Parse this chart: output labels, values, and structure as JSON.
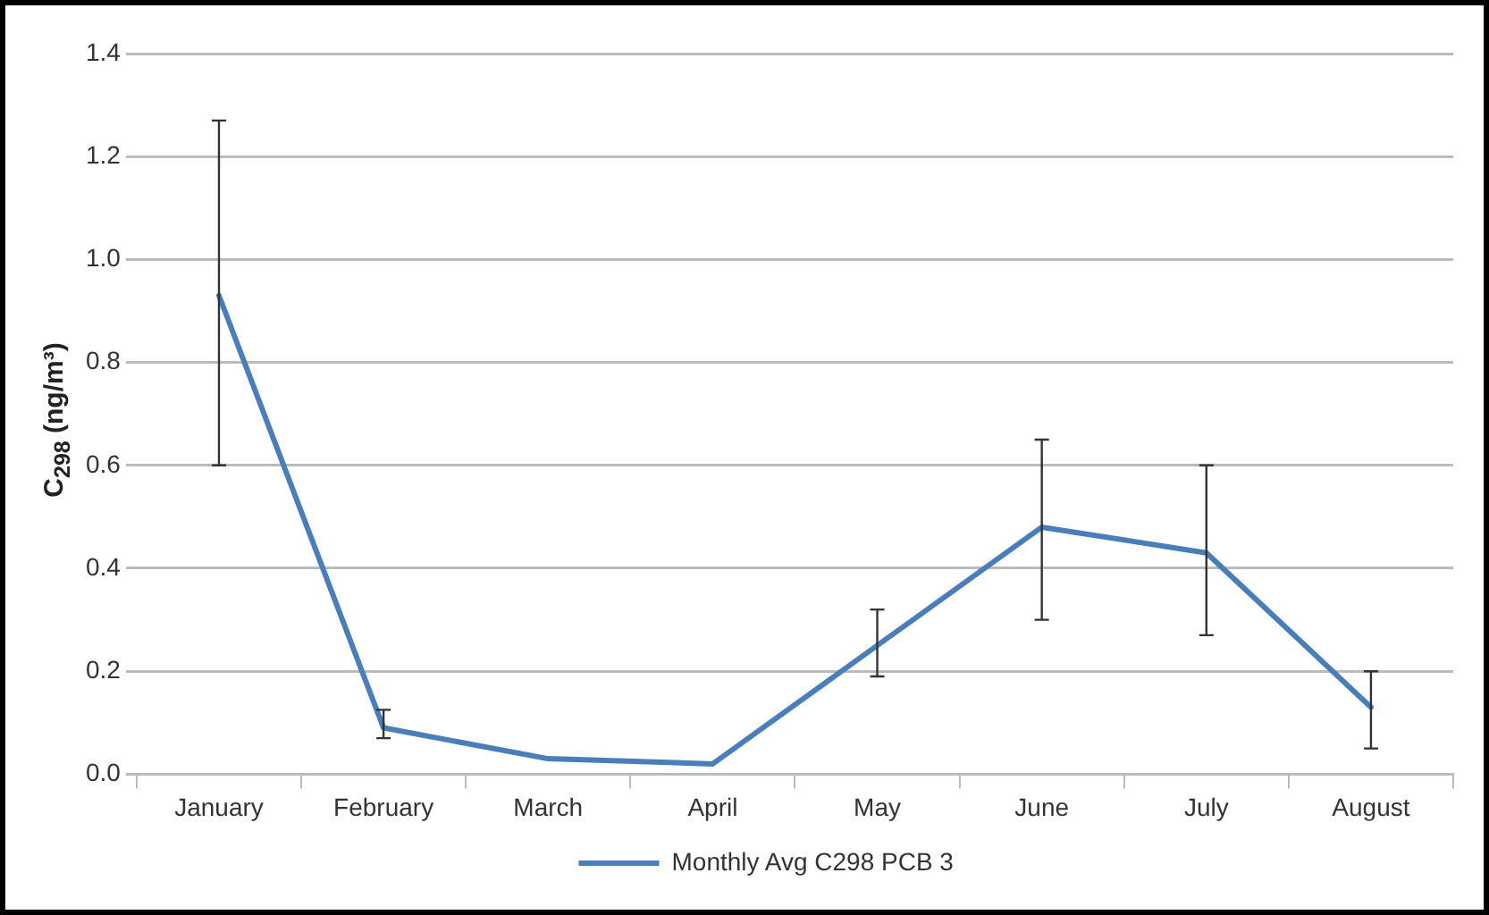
{
  "chart_data": {
    "type": "line",
    "ylabel": "C$_{298}$ (ng/m³)",
    "categories": [
      "January",
      "February",
      "March",
      "April",
      "May",
      "June",
      "July",
      "August"
    ],
    "series": [
      {
        "name": "Monthly Avg C298 PCB 3",
        "color": "#4a7ebb",
        "values": [
          0.93,
          0.09,
          0.03,
          0.02,
          0.25,
          0.48,
          0.43,
          0.13
        ],
        "errors": [
          [
            0.6,
            1.27
          ],
          [
            0.07,
            0.125
          ],
          null,
          null,
          [
            0.19,
            0.32
          ],
          [
            0.3,
            0.65
          ],
          [
            0.27,
            0.6
          ],
          [
            0.05,
            0.2
          ]
        ]
      }
    ],
    "ylim": [
      0,
      1.4
    ],
    "yticks": [
      {
        "value": 0,
        "label": "0.0"
      },
      0.2,
      0.4,
      0.6,
      0.8,
      {
        "value": 1,
        "label": "1.0"
      },
      1.2,
      1.4
    ],
    "grid": "y",
    "legend": "bottom",
    "marker": "none",
    "line_style": "solid"
  }
}
